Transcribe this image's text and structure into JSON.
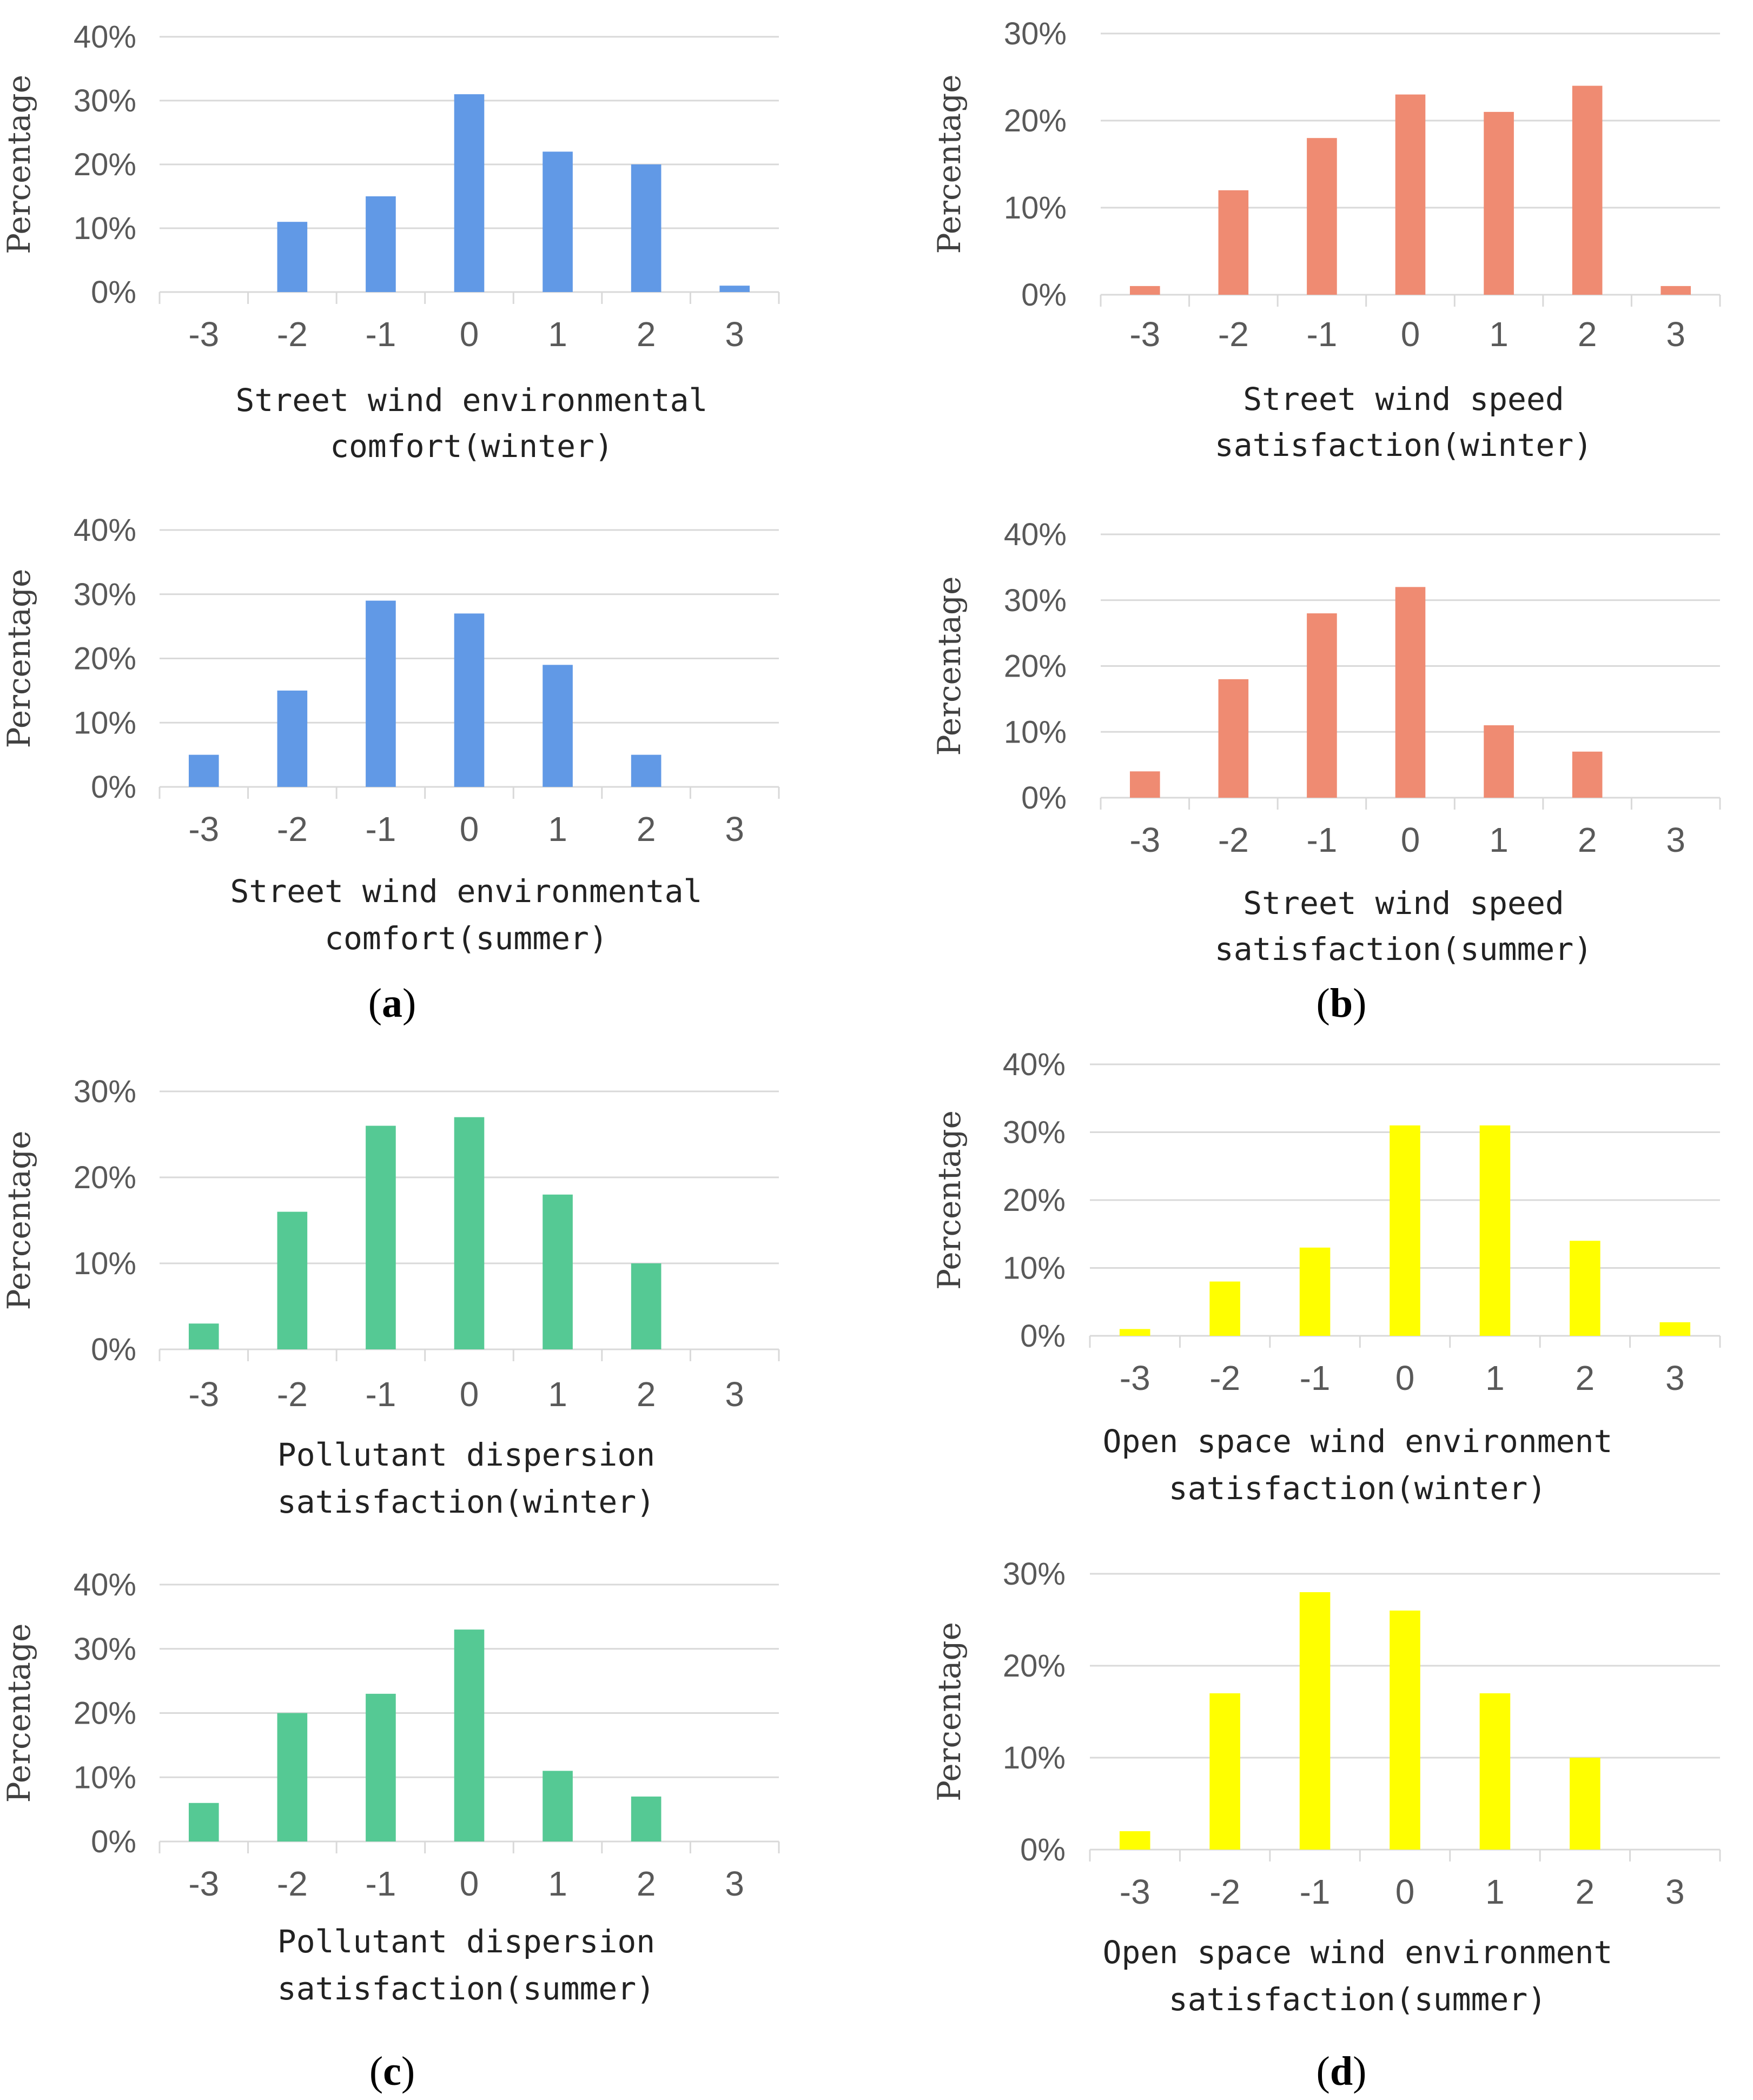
{
  "chart_data": [
    {
      "id": "a1",
      "type": "bar",
      "color": "#6199e6",
      "title": "",
      "xlabel": "Street wind environmental comfort(winter)",
      "caption_lines": [
        "Street wind environmental",
        "comfort(winter)"
      ],
      "ylabel": "Percentage",
      "categories": [
        "-3",
        "-2",
        "-1",
        "0",
        "1",
        "2",
        "3"
      ],
      "values": [
        0,
        11,
        15,
        31,
        22,
        20,
        1
      ],
      "ylim": [
        0,
        40
      ],
      "yticks": [
        "0%",
        "10%",
        "20%",
        "30%",
        "40%"
      ],
      "grid": true
    },
    {
      "id": "a2",
      "type": "bar",
      "color": "#6199e6",
      "title": "",
      "xlabel": "Street wind environmental comfort(summer)",
      "caption_lines": [
        "Street wind environmental",
        "comfort(summer)"
      ],
      "ylabel": "Percentage",
      "categories": [
        "-3",
        "-2",
        "-1",
        "0",
        "1",
        "2",
        "3"
      ],
      "values": [
        5,
        15,
        29,
        27,
        19,
        5,
        0
      ],
      "ylim": [
        0,
        40
      ],
      "yticks": [
        "0%",
        "10%",
        "20%",
        "30%",
        "40%"
      ],
      "grid": true
    },
    {
      "id": "b1",
      "type": "bar",
      "color": "#ef8b72",
      "title": "",
      "xlabel": "Street wind speed satisfaction(winter)",
      "caption_lines": [
        "Street wind speed",
        "satisfaction(winter)"
      ],
      "ylabel": "Percentage",
      "categories": [
        "-3",
        "-2",
        "-1",
        "0",
        "1",
        "2",
        "3"
      ],
      "values": [
        1,
        12,
        18,
        23,
        21,
        24,
        1
      ],
      "ylim": [
        0,
        30
      ],
      "yticks": [
        "0%",
        "10%",
        "20%",
        "30%"
      ],
      "grid": true
    },
    {
      "id": "b2",
      "type": "bar",
      "color": "#ef8b72",
      "title": "",
      "xlabel": "Street wind speed satisfaction(summer)",
      "caption_lines": [
        "Street wind speed",
        "satisfaction(summer)"
      ],
      "ylabel": "Percentage",
      "categories": [
        "-3",
        "-2",
        "-1",
        "0",
        "1",
        "2",
        "3"
      ],
      "values": [
        4,
        18,
        28,
        32,
        11,
        7,
        0
      ],
      "ylim": [
        0,
        40
      ],
      "yticks": [
        "0%",
        "10%",
        "20%",
        "30%",
        "40%"
      ],
      "grid": true
    },
    {
      "id": "c1",
      "type": "bar",
      "color": "#55c994",
      "title": "",
      "xlabel": "Pollutant dispersion satisfaction(winter)",
      "caption_lines": [
        "Pollutant dispersion",
        "satisfaction(winter)"
      ],
      "ylabel": "Percentage",
      "categories": [
        "-3",
        "-2",
        "-1",
        "0",
        "1",
        "2",
        "3"
      ],
      "values": [
        3,
        16,
        26,
        27,
        18,
        10,
        0
      ],
      "ylim": [
        0,
        30
      ],
      "yticks": [
        "0%",
        "10%",
        "20%",
        "30%"
      ],
      "grid": true
    },
    {
      "id": "c2",
      "type": "bar",
      "color": "#55c994",
      "title": "",
      "xlabel": "Pollutant dispersion satisfaction(summer)",
      "caption_lines": [
        "Pollutant dispersion",
        "satisfaction(summer)"
      ],
      "ylabel": "Percentage",
      "categories": [
        "-3",
        "-2",
        "-1",
        "0",
        "1",
        "2",
        "3"
      ],
      "values": [
        6,
        20,
        23,
        33,
        11,
        7,
        0
      ],
      "ylim": [
        0,
        40
      ],
      "yticks": [
        "0%",
        "10%",
        "20%",
        "30%",
        "40%"
      ],
      "grid": true
    },
    {
      "id": "d1",
      "type": "bar",
      "color": "#ffff00",
      "title": "",
      "xlabel": "Open space wind environment satisfaction(winter)",
      "caption_lines": [
        "Open space wind environment",
        "satisfaction(winter)"
      ],
      "ylabel": "Percentage",
      "categories": [
        "-3",
        "-2",
        "-1",
        "0",
        "1",
        "2",
        "3"
      ],
      "values": [
        1,
        8,
        13,
        31,
        31,
        14,
        2
      ],
      "ylim": [
        0,
        40
      ],
      "yticks": [
        "0%",
        "10%",
        "20%",
        "30%",
        "40%"
      ],
      "grid": true
    },
    {
      "id": "d2",
      "type": "bar",
      "color": "#ffff00",
      "title": "",
      "xlabel": "Open space wind environment satisfaction(summer)",
      "caption_lines": [
        "Open space wind environment",
        "satisfaction(summer)"
      ],
      "ylabel": "Percentage",
      "categories": [
        "-3",
        "-2",
        "-1",
        "0",
        "1",
        "2",
        "3"
      ],
      "values": [
        2,
        17,
        28,
        26,
        17,
        10,
        0
      ],
      "ylim": [
        0,
        30
      ],
      "yticks": [
        "0%",
        "10%",
        "20%",
        "30%"
      ],
      "grid": true
    }
  ],
  "panel_labels": [
    {
      "id": "a",
      "open": "(",
      "letter": "a",
      "close": ")"
    },
    {
      "id": "b",
      "open": "(",
      "letter": "b",
      "close": ")"
    },
    {
      "id": "c",
      "open": "(",
      "letter": "c",
      "close": ")"
    },
    {
      "id": "d",
      "open": "(",
      "letter": "d",
      "close": ")"
    }
  ]
}
